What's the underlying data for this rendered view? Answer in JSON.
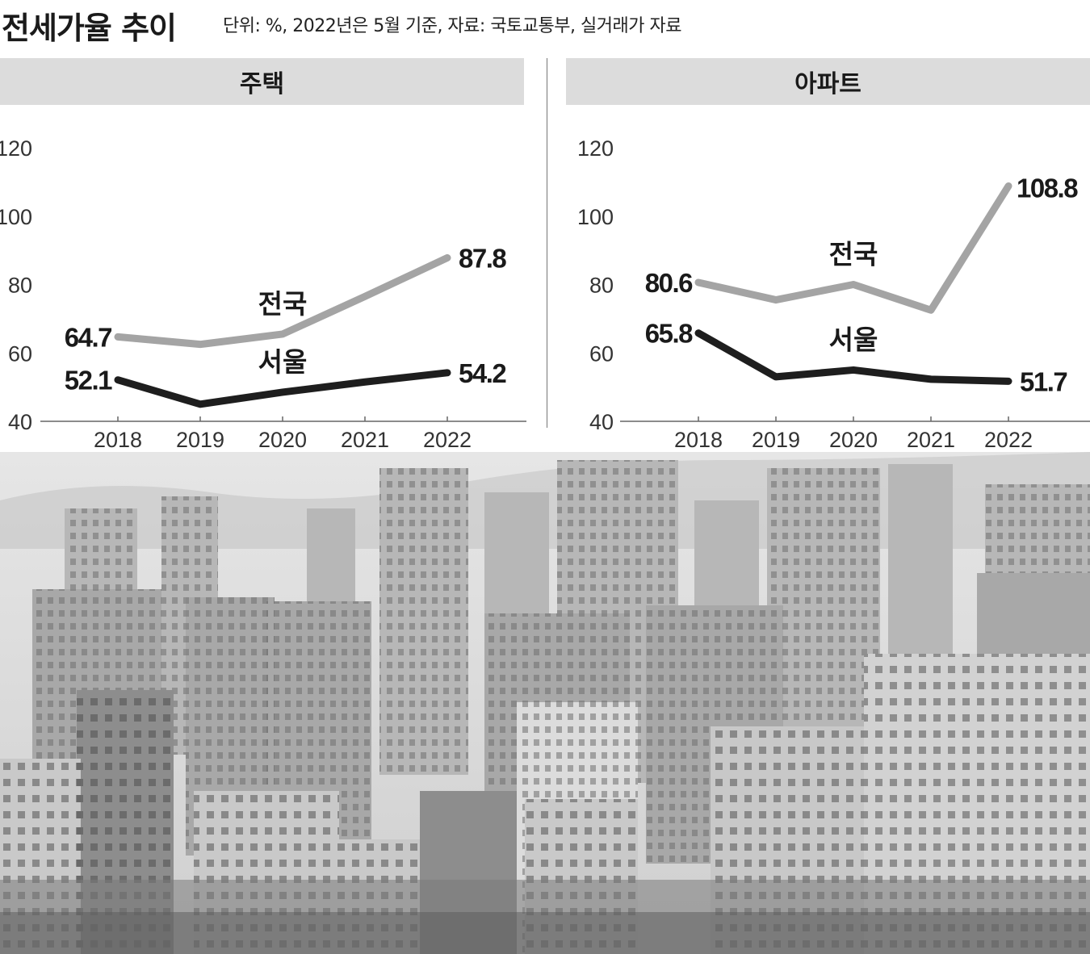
{
  "title": "전세가율 추이",
  "subtitle": "단위: %, 2022년은 5월 기준, 자료: 국토교통부, 실거래가 자료",
  "colors": {
    "national": "#a4a4a4",
    "seoul": "#1e1e1e",
    "header_bg": "#dcdcdc"
  },
  "chart_data": [
    {
      "type": "line",
      "title": "주택",
      "x": [
        "2018",
        "2019",
        "2020",
        "2021",
        "2022"
      ],
      "ylim": [
        40,
        120
      ],
      "yticks": [
        "40",
        "60",
        "80",
        "100",
        "120"
      ],
      "series": [
        {
          "name": "전국",
          "values": [
            64.7,
            62.5,
            65.5,
            76.5,
            87.8
          ],
          "labels": [
            "64.7",
            "",
            "",
            "",
            "87.8"
          ]
        },
        {
          "name": "서울",
          "values": [
            52.1,
            45.0,
            48.5,
            51.5,
            54.2
          ],
          "labels": [
            "52.1",
            "",
            "",
            "",
            "54.2"
          ]
        }
      ]
    },
    {
      "type": "line",
      "title": "아파트",
      "x": [
        "2018",
        "2019",
        "2020",
        "2021",
        "2022"
      ],
      "ylim": [
        40,
        120
      ],
      "yticks": [
        "40",
        "60",
        "80",
        "100",
        "120"
      ],
      "series": [
        {
          "name": "전국",
          "values": [
            80.6,
            75.5,
            80.0,
            72.5,
            108.8
          ],
          "labels": [
            "80.6",
            "",
            "",
            "",
            "108.8"
          ]
        },
        {
          "name": "서울",
          "values": [
            65.8,
            53.0,
            55.0,
            52.3,
            51.7
          ],
          "labels": [
            "65.8",
            "",
            "",
            "",
            "51.7"
          ]
        }
      ]
    }
  ]
}
